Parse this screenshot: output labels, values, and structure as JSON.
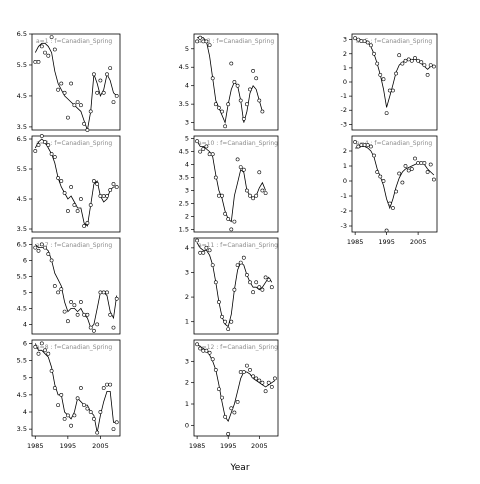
{
  "chart_data": {
    "type": "scatter",
    "xlabel": "Year",
    "xlim": [
      1984,
      2011
    ],
    "x_ticks": [
      1985,
      1995,
      2005
    ],
    "panels": [
      {
        "strip": "a=1 : f=Canadian_Spring",
        "ylim": [
          3.4,
          6.5
        ],
        "y_ticks": [
          3.5,
          4.5,
          5.5,
          6.5
        ],
        "show_x_ticks": false,
        "x": [
          1985,
          1986,
          1987,
          1988,
          1989,
          1990,
          1991,
          1992,
          1993,
          1994,
          1995,
          1996,
          1997,
          1998,
          1999,
          2000,
          2001,
          2002,
          2003,
          2004,
          2005,
          2006,
          2007,
          2008,
          2009,
          2010
        ],
        "y": [
          5.6,
          5.6,
          6.1,
          5.9,
          5.8,
          6.4,
          6.0,
          4.7,
          4.9,
          4.6,
          3.8,
          4.9,
          4.2,
          4.3,
          4.2,
          3.6,
          3.4,
          4.0,
          5.2,
          4.6,
          5.0,
          4.6,
          5.2,
          5.4,
          4.3,
          4.5
        ],
        "fit": [
          5.9,
          6.1,
          6.2,
          6.2,
          6.1,
          5.9,
          5.3,
          4.9,
          4.7,
          4.5,
          4.4,
          4.3,
          4.2,
          4.1,
          4.0,
          3.7,
          3.4,
          4.0,
          5.2,
          4.9,
          4.5,
          4.7,
          5.2,
          5.0,
          4.6,
          4.5
        ]
      },
      {
        "strip": "a=3 : f=Canadian_Spring",
        "ylim": [
          2.8,
          5.4
        ],
        "y_ticks": [
          3.0,
          3.5,
          4.0,
          4.5,
          5.0
        ],
        "show_x_ticks": false,
        "x": [
          1985,
          1986,
          1987,
          1988,
          1989,
          1990,
          1991,
          1992,
          1993,
          1994,
          1995,
          1996,
          1997,
          1998,
          1999,
          2000,
          2001,
          2002,
          2003,
          2004,
          2005,
          2006
        ],
        "y": [
          5.2,
          5.3,
          5.2,
          5.2,
          5.1,
          4.2,
          3.5,
          3.4,
          3.3,
          2.9,
          3.5,
          4.6,
          4.1,
          4.0,
          3.6,
          3.1,
          3.5,
          3.9,
          4.4,
          4.2,
          3.6,
          3.3
        ],
        "fit": [
          5.3,
          5.3,
          5.3,
          5.2,
          4.8,
          4.2,
          3.6,
          3.4,
          3.2,
          3.0,
          3.5,
          3.9,
          4.1,
          4.0,
          3.6,
          3.0,
          3.3,
          3.8,
          4.0,
          3.9,
          3.6,
          3.3
        ]
      },
      {
        "strip": "a=5 : f=Canadian_Spring",
        "ylim": [
          -3.4,
          3.4
        ],
        "y_ticks": [
          -3,
          -2,
          -1,
          0,
          1,
          2,
          3
        ],
        "show_x_ticks": false,
        "x": [
          1985,
          1986,
          1987,
          1988,
          1989,
          1990,
          1991,
          1992,
          1993,
          1994,
          1995,
          1996,
          1997,
          1998,
          1999,
          2000,
          2001,
          2002,
          2003,
          2004,
          2005,
          2006,
          2007,
          2008,
          2009,
          2010
        ],
        "y": [
          3.1,
          3.0,
          2.9,
          2.9,
          2.8,
          2.6,
          2.0,
          1.3,
          0.5,
          0.2,
          -2.2,
          -0.6,
          -0.6,
          0.6,
          1.9,
          1.3,
          1.5,
          1.6,
          1.5,
          1.7,
          1.5,
          1.4,
          1.2,
          0.5,
          1.2,
          1.1
        ],
        "fit": [
          3.1,
          3.0,
          3.0,
          2.9,
          2.8,
          2.5,
          2.0,
          1.3,
          0.5,
          -0.5,
          -1.8,
          -1.0,
          -0.2,
          0.7,
          1.2,
          1.4,
          1.5,
          1.6,
          1.6,
          1.6,
          1.5,
          1.3,
          1.1,
          0.9,
          1.1,
          1.2
        ]
      },
      {
        "strip": "a=2 : f=Canadian_Spring",
        "ylim": [
          3.4,
          6.6
        ],
        "y_ticks": [
          3.5,
          4.5,
          5.5,
          6.5
        ],
        "show_x_ticks": false,
        "x": [
          1985,
          1986,
          1987,
          1988,
          1989,
          1990,
          1991,
          1992,
          1993,
          1994,
          1995,
          1996,
          1997,
          1998,
          1999,
          2000,
          2001,
          2002,
          2003,
          2004,
          2005,
          2006,
          2007,
          2008,
          2009,
          2010
        ],
        "y": [
          6.1,
          6.3,
          6.6,
          6.4,
          6.3,
          6.0,
          5.9,
          5.2,
          5.1,
          4.7,
          4.1,
          4.9,
          4.3,
          4.1,
          4.5,
          3.6,
          3.7,
          4.3,
          5.1,
          5.0,
          4.6,
          4.6,
          4.6,
          4.8,
          5.0,
          4.9
        ],
        "fit": [
          6.2,
          6.4,
          6.5,
          6.4,
          6.2,
          6.0,
          5.7,
          5.2,
          4.9,
          4.7,
          4.5,
          4.6,
          4.4,
          4.2,
          4.2,
          3.7,
          3.6,
          4.3,
          5.0,
          5.1,
          4.6,
          4.4,
          4.5,
          4.8,
          4.9,
          4.9
        ]
      },
      {
        "strip": "a=10 : f=Canadian_Spring",
        "ylim": [
          1.4,
          5.1
        ],
        "y_ticks": [
          1.5,
          2.0,
          2.5,
          3.0,
          3.5,
          4.0,
          4.5,
          5.0
        ],
        "show_x_ticks": false,
        "x": [
          1985,
          1986,
          1987,
          1988,
          1989,
          1990,
          1991,
          1992,
          1993,
          1994,
          1995,
          1996,
          1997,
          1998,
          1999,
          2000,
          2001,
          2002,
          2003,
          2004,
          2005,
          2006,
          2007
        ],
        "y": [
          4.9,
          4.5,
          4.6,
          4.7,
          4.4,
          4.4,
          3.5,
          2.8,
          2.8,
          2.1,
          1.9,
          1.5,
          1.8,
          4.2,
          3.9,
          3.8,
          3.0,
          2.8,
          2.7,
          2.8,
          3.7,
          3.0,
          2.9
        ],
        "fit": [
          4.9,
          4.7,
          4.7,
          4.6,
          4.5,
          4.3,
          3.6,
          3.0,
          2.7,
          2.2,
          1.9,
          1.8,
          2.8,
          3.3,
          3.8,
          3.7,
          3.0,
          2.8,
          2.7,
          2.8,
          3.1,
          3.3,
          3.0
        ]
      },
      {
        "strip": "a=4 : f=Canadian_Spring",
        "ylim": [
          -3.4,
          3.0
        ],
        "y_ticks": [
          -3,
          -2,
          -1,
          0,
          1,
          2
        ],
        "show_x_ticks": true,
        "x": [
          1985,
          1986,
          1987,
          1988,
          1989,
          1990,
          1991,
          1992,
          1993,
          1994,
          1995,
          1996,
          1997,
          1998,
          1999,
          2000,
          2001,
          2002,
          2003,
          2004,
          2005,
          2006,
          2007,
          2008,
          2009,
          2010
        ],
        "y": [
          2.6,
          2.3,
          2.4,
          2.4,
          2.4,
          2.3,
          1.7,
          0.6,
          0.3,
          0.0,
          -3.3,
          -1.5,
          -1.8,
          -0.7,
          0.5,
          -0.1,
          1.0,
          0.7,
          0.8,
          1.5,
          1.2,
          1.2,
          1.2,
          0.6,
          1.1,
          0.1
        ],
        "fit": [
          2.2,
          2.2,
          2.3,
          2.3,
          2.2,
          2.0,
          1.6,
          0.8,
          0.3,
          -0.3,
          -1.2,
          -1.8,
          -1.2,
          -0.4,
          0.2,
          0.6,
          0.8,
          0.9,
          1.0,
          1.1,
          1.2,
          1.2,
          1.1,
          0.8,
          0.6,
          0.4
        ]
      },
      {
        "strip": "a=7 : f=Canadian_Spring",
        "ylim": [
          3.7,
          6.7
        ],
        "y_ticks": [
          4.0,
          4.5,
          5.0,
          5.5,
          6.0,
          6.5
        ],
        "show_x_ticks": false,
        "x": [
          1985,
          1986,
          1987,
          1988,
          1989,
          1990,
          1991,
          1992,
          1993,
          1994,
          1995,
          1996,
          1997,
          1998,
          1999,
          2000,
          2001,
          2002,
          2003,
          2004,
          2005,
          2006,
          2007,
          2008,
          2009,
          2010
        ],
        "y": [
          6.4,
          6.3,
          6.5,
          6.4,
          6.2,
          6.0,
          5.2,
          5.0,
          5.1,
          4.4,
          4.1,
          4.7,
          4.6,
          4.3,
          4.7,
          4.3,
          4.3,
          3.9,
          3.8,
          4.0,
          5.0,
          5.0,
          5.0,
          4.3,
          3.9,
          4.8
        ],
        "fit": [
          6.5,
          6.4,
          6.4,
          6.4,
          6.3,
          6.0,
          5.6,
          5.4,
          5.2,
          4.7,
          4.4,
          4.5,
          4.5,
          4.4,
          4.5,
          4.3,
          4.2,
          3.9,
          4.0,
          4.5,
          5.0,
          5.0,
          4.9,
          4.4,
          4.2,
          4.9
        ]
      },
      {
        "strip": "a=11 : f=Canadian_Spring",
        "ylim": [
          0.5,
          4.4
        ],
        "y_ticks": [
          1,
          2,
          3,
          4
        ],
        "show_x_ticks": false,
        "x": [
          1985,
          1986,
          1987,
          1988,
          1989,
          1990,
          1991,
          1992,
          1993,
          1994,
          1995,
          1996,
          1997,
          1998,
          1999,
          2000,
          2001,
          2002,
          2003,
          2004,
          2005,
          2006,
          2007,
          2008,
          2009
        ],
        "y": [
          4.3,
          3.8,
          3.8,
          4.0,
          3.9,
          3.3,
          2.6,
          1.8,
          1.2,
          1.0,
          0.7,
          1.0,
          2.3,
          3.3,
          3.4,
          3.6,
          2.9,
          2.6,
          2.2,
          2.6,
          2.4,
          2.3,
          2.8,
          2.7,
          2.4
        ],
        "fit": [
          4.2,
          4.0,
          3.9,
          3.9,
          3.7,
          3.3,
          2.6,
          1.8,
          1.2,
          0.9,
          0.8,
          1.3,
          2.3,
          3.1,
          3.4,
          3.3,
          2.9,
          2.6,
          2.4,
          2.4,
          2.3,
          2.4,
          2.6,
          2.8,
          2.6
        ]
      },
      {
        "strip": "a=8 : f=Canadian_Spring",
        "ylim": [
          3.3,
          6.1
        ],
        "y_ticks": [
          3.5,
          4.0,
          4.5,
          5.0,
          5.5,
          6.0
        ],
        "show_x_ticks": true,
        "x": [
          1985,
          1986,
          1987,
          1988,
          1989,
          1990,
          1991,
          1992,
          1993,
          1994,
          1995,
          1996,
          1997,
          1998,
          1999,
          2000,
          2001,
          2002,
          2003,
          2004,
          2005,
          2006,
          2007,
          2008,
          2009,
          2010
        ],
        "y": [
          5.9,
          5.7,
          6.0,
          5.8,
          5.7,
          5.2,
          4.7,
          4.2,
          4.5,
          3.8,
          3.9,
          3.6,
          3.9,
          4.4,
          4.7,
          4.2,
          4.1,
          4.0,
          3.8,
          3.4,
          4.0,
          4.7,
          4.8,
          4.8,
          3.5,
          3.7
        ],
        "fit": [
          6.0,
          5.8,
          5.8,
          5.7,
          5.6,
          5.3,
          4.8,
          4.5,
          4.5,
          4.0,
          3.9,
          3.8,
          4.0,
          4.4,
          4.3,
          4.2,
          4.2,
          4.0,
          3.9,
          3.4,
          3.9,
          4.3,
          4.6,
          4.6,
          3.7,
          3.7
        ]
      },
      {
        "strip": "a=12 : f=Canadian_Spring",
        "ylim": [
          -0.5,
          4.0
        ],
        "y_ticks": [
          0,
          1,
          2,
          3
        ],
        "show_x_ticks": true,
        "x": [
          1985,
          1986,
          1987,
          1988,
          1989,
          1990,
          1991,
          1992,
          1993,
          1994,
          1995,
          1996,
          1997,
          1998,
          1999,
          2000,
          2001,
          2002,
          2003,
          2004,
          2005,
          2006,
          2007,
          2008,
          2009,
          2010
        ],
        "y": [
          3.8,
          3.6,
          3.5,
          3.5,
          3.4,
          3.1,
          2.6,
          1.7,
          1.3,
          0.4,
          -0.4,
          0.8,
          0.6,
          1.1,
          2.5,
          2.5,
          2.8,
          2.6,
          2.3,
          2.2,
          2.1,
          2.0,
          1.6,
          2.0,
          1.8,
          2.2
        ],
        "fit": [
          3.8,
          3.7,
          3.6,
          3.5,
          3.3,
          3.0,
          2.6,
          1.9,
          1.1,
          0.4,
          0.2,
          0.6,
          1.0,
          1.6,
          2.2,
          2.5,
          2.5,
          2.4,
          2.2,
          2.1,
          2.0,
          1.9,
          1.8,
          1.9,
          2.0,
          2.1
        ]
      }
    ]
  }
}
